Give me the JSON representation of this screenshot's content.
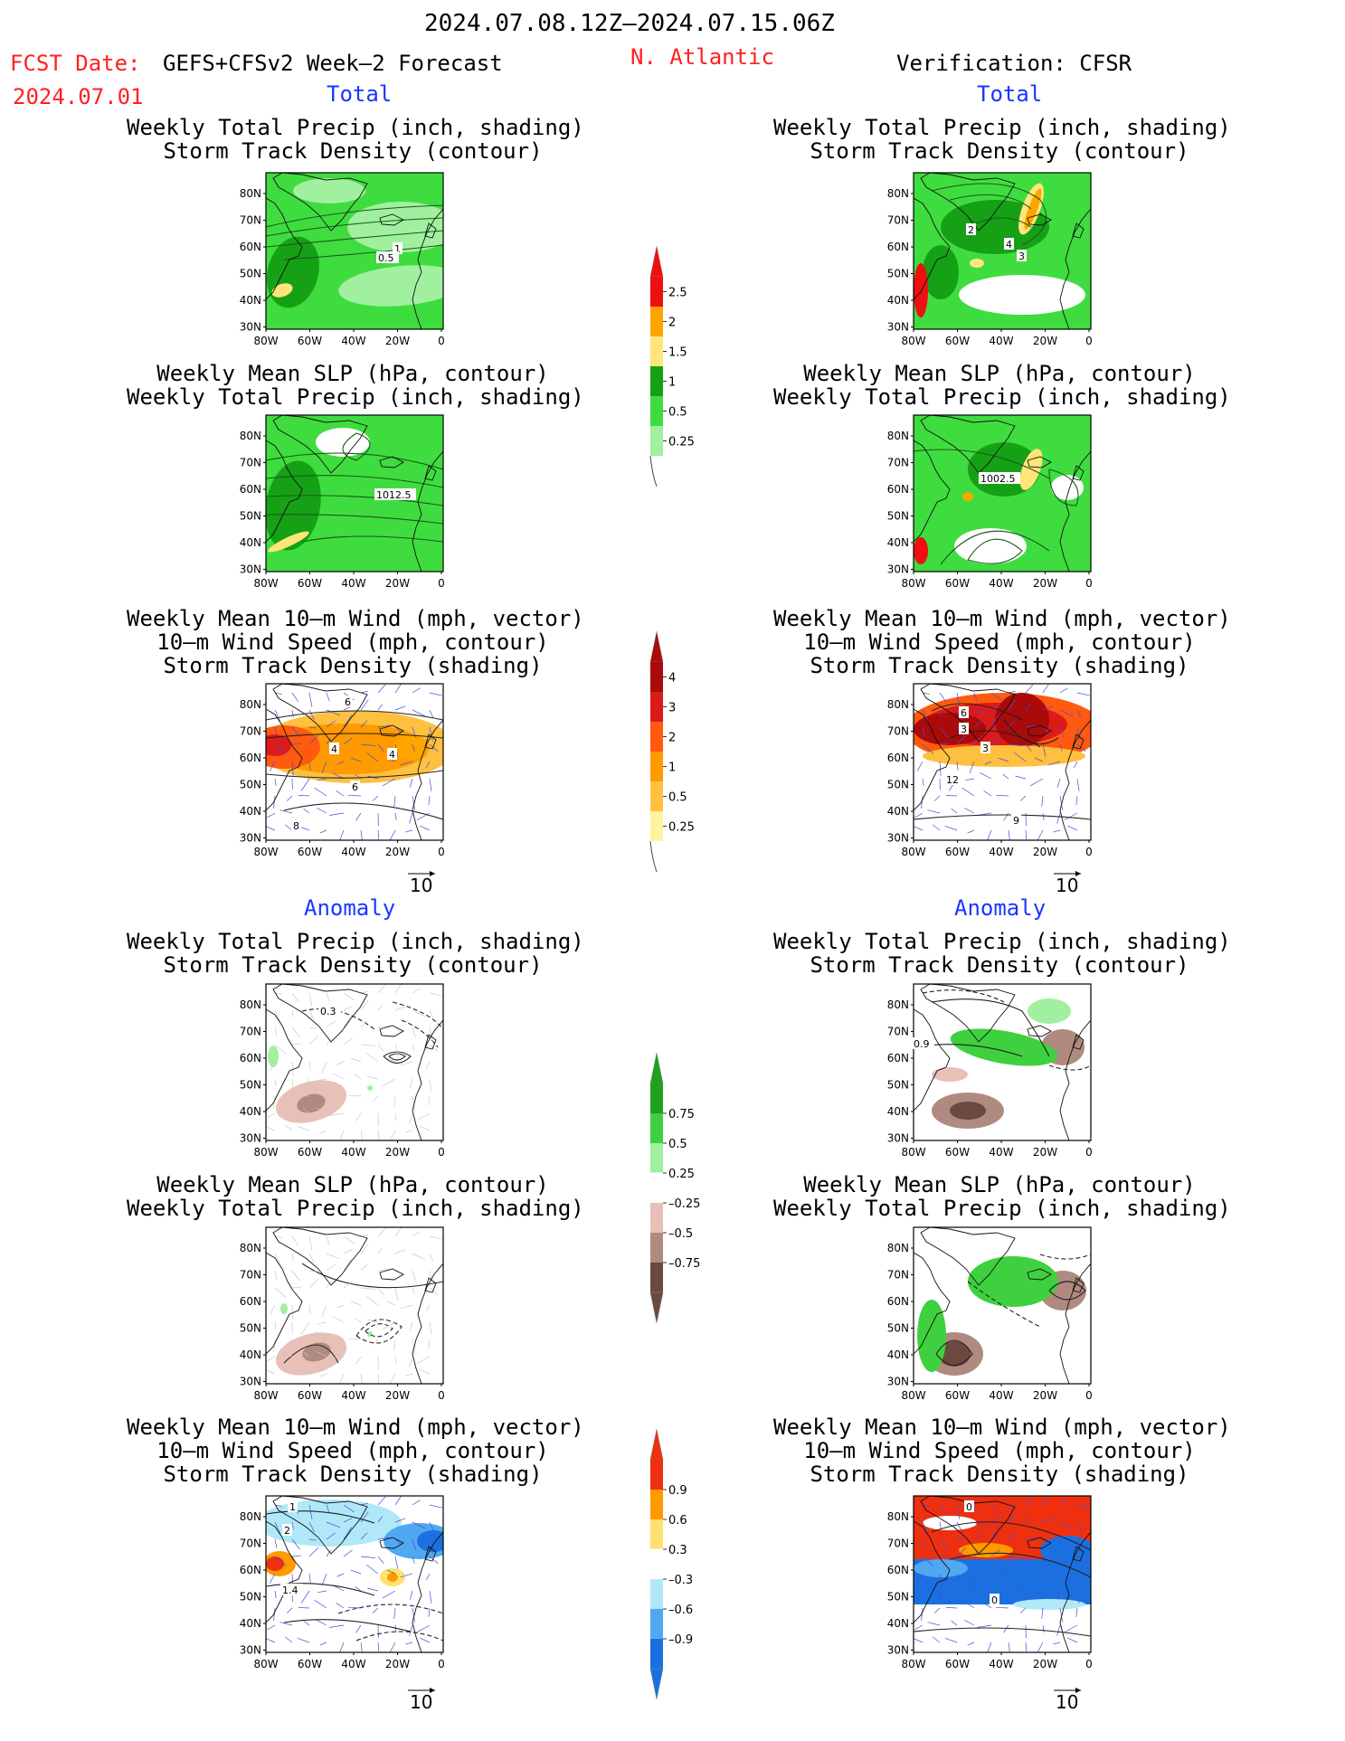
{
  "header": {
    "date_range": "2024.07.08.12Z–2024.07.15.06Z",
    "fcst_label": "FCST Date:",
    "model_label": "GEFS+CFSv2 Week–2 Forecast",
    "fcst_date": "2024.07.01",
    "region": "N. Atlantic",
    "verification_label": "Verification: CFSR"
  },
  "sections": {
    "total": "Total",
    "anomaly": "Anomaly"
  },
  "titles": {
    "precip_track": [
      "Weekly Total Precip (inch, shading)",
      "Storm Track Density (contour)"
    ],
    "slp_precip": [
      "Weekly Mean SLP (hPa, contour)",
      "Weekly Total Precip (inch, shading)"
    ],
    "wind_track": [
      "Weekly Mean 10–m Wind (mph, vector)",
      "10–m Wind Speed (mph, contour)",
      "Storm Track Density (shading)"
    ]
  },
  "axes": {
    "lat_ticks": [
      "80N",
      "70N",
      "60N",
      "50N",
      "40N",
      "30N"
    ],
    "lon_ticks": [
      "80W",
      "60W",
      "40W",
      "20W",
      "0"
    ]
  },
  "vector_ref": "10",
  "panel_labels": {
    "fcst_total_precip": [
      "1",
      "0.5"
    ],
    "fcst_total_slp": [
      "1012.5"
    ],
    "fcst_total_wind": [
      "6",
      "4",
      "4",
      "6",
      "8"
    ],
    "verif_total_precip": [
      "2",
      "4",
      "3"
    ],
    "verif_total_slp": [
      "1002.5"
    ],
    "verif_total_wind": [
      "6",
      "3",
      "3",
      "12",
      "9"
    ],
    "fcst_anom_precip": [
      "0.3"
    ],
    "verif_anom_precip": [
      "0.9"
    ],
    "fcst_anom_wind": [
      "1",
      "2",
      "1.4"
    ],
    "verif_anom_wind": [
      "0",
      "0"
    ]
  },
  "colorbars": {
    "total_precip": {
      "labels": [
        "2.5",
        "2",
        "1.5",
        "1",
        "0.5",
        "0.25"
      ],
      "colors": [
        "#ee1010",
        "#ffa500",
        "#ffe57a",
        "#16a016",
        "#3fdc3f",
        "#a0f0a0"
      ],
      "top_arrow_color": "#ee1010"
    },
    "total_track": {
      "labels": [
        "4",
        "3",
        "2",
        "1",
        "0.5",
        "0.25"
      ],
      "colors": [
        "#aa0a0a",
        "#dd1a1a",
        "#ff5a10",
        "#ff9a00",
        "#ffc040",
        "#fff4a0"
      ],
      "top_arrow_color": "#aa0a0a"
    },
    "anom_precip": {
      "labels": [
        "0.75",
        "0.5",
        "0.25",
        "–0.25",
        "–0.5",
        "–0.75"
      ],
      "colors": [
        "#1fa01f",
        "#3fd03f",
        "#a0f0a0",
        "#ffffff",
        "#e8c0b8",
        "#b08a80",
        "#6a4a40"
      ],
      "top_arrow_color": "#1fa01f",
      "bottom_arrow_color": "#6a4a40"
    },
    "anom_track": {
      "labels": [
        "0.9",
        "0.6",
        "0.3",
        "–0.3",
        "–0.6",
        "–0.9"
      ],
      "colors": [
        "#ee3010",
        "#ff9a00",
        "#ffe070",
        "#ffffff",
        "#b0e8f8",
        "#50a8f0",
        "#1a70e0"
      ],
      "top_arrow_color": "#ee3010",
      "bottom_arrow_color": "#1a70e0"
    }
  },
  "colors": {
    "green_light": "#a0f0a0",
    "green_mid": "#3fdc3f",
    "green_dark": "#16a016",
    "red_text": "#ff2020",
    "blue_text": "#1a36ff",
    "contour_blue": "#4b4bdc"
  }
}
